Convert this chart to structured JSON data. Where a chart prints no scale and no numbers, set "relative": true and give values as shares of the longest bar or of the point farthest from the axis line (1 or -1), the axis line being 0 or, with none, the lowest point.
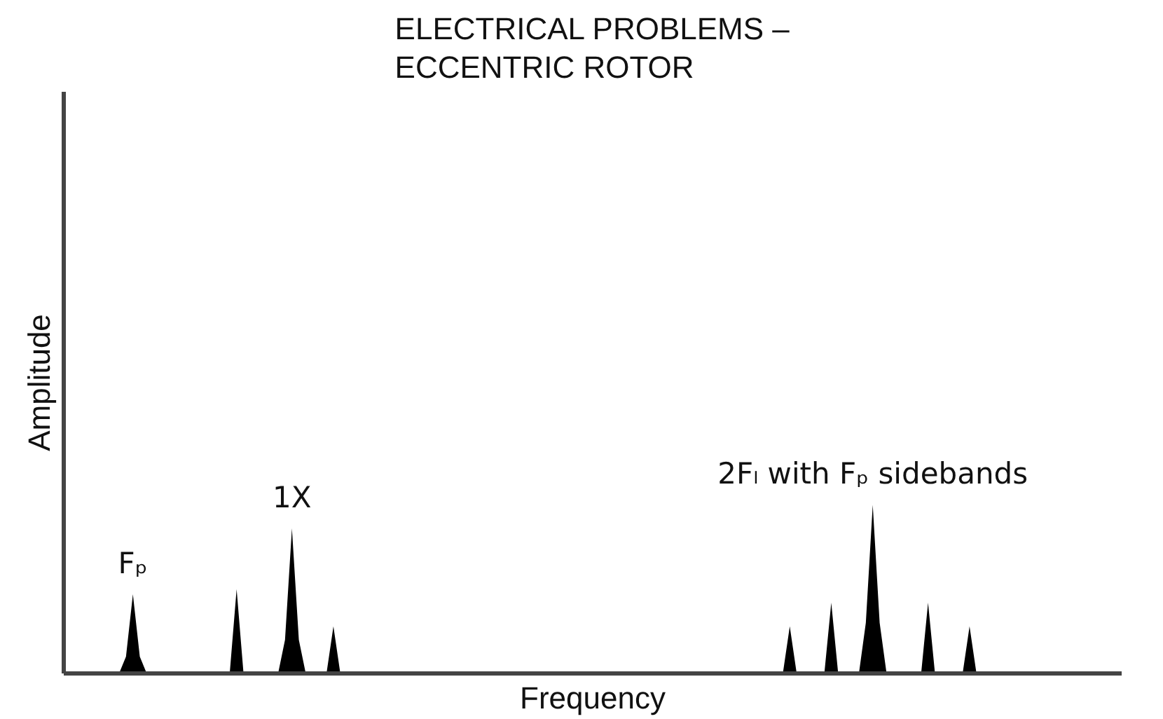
{
  "chart_data": {
    "type": "area",
    "title": "ELECTRICAL PROBLEMS –\nECCENTRIC ROTOR",
    "xlabel": "Frequency",
    "ylabel": "Amplitude",
    "relative": true,
    "color": "#000000",
    "categories": [
      null,
      null,
      null,
      null,
      null,
      null,
      null,
      null,
      null,
      null,
      null,
      null,
      null,
      null,
      null,
      null,
      null,
      null,
      null,
      null,
      null,
      null,
      null,
      null,
      null,
      null,
      null,
      null,
      null,
      null,
      null,
      null,
      null,
      null,
      null,
      null,
      null,
      null,
      null,
      null,
      null,
      null,
      null,
      null,
      null,
      null,
      null,
      null,
      null,
      null,
      null,
      null,
      null,
      null,
      null,
      null,
      null,
      null,
      null,
      null,
      null,
      null,
      null,
      null,
      null,
      null,
      null,
      null,
      null,
      null,
      null,
      null,
      null,
      null,
      null,
      null,
      null,
      null,
      null,
      null,
      null,
      null,
      null,
      null,
      null,
      null,
      null,
      null,
      null,
      null,
      null,
      null,
      null,
      null,
      null,
      null,
      null,
      null,
      null,
      null,
      null,
      null,
      null,
      null,
      null,
      null,
      null,
      null,
      null,
      null,
      null,
      null,
      null,
      null,
      null,
      null,
      null,
      null,
      null,
      null,
      null,
      null,
      null,
      null,
      null,
      null,
      null,
      null,
      null,
      null,
      null,
      null,
      null,
      null,
      null,
      null,
      null,
      null,
      null,
      null,
      null,
      null,
      null,
      null,
      null,
      null,
      null,
      null,
      null,
      null,
      null,
      null
    ],
    "values": [
      0,
      0,
      0,
      0,
      0,
      0,
      0,
      0,
      0.1,
      0.47,
      0.1,
      0,
      0,
      0,
      0,
      0,
      0,
      0,
      0,
      0,
      0,
      0,
      0,
      0,
      0.5,
      0,
      0,
      0,
      0,
      0,
      0,
      0.2,
      0.86,
      0.2,
      0,
      0,
      0,
      0,
      0.28,
      0,
      0,
      0,
      0,
      0,
      0,
      0,
      0,
      0,
      0,
      0,
      0,
      0,
      0,
      0,
      0,
      0,
      0,
      0,
      0,
      0,
      0,
      0,
      0,
      0,
      0,
      0,
      0,
      0,
      0,
      0,
      0,
      0,
      0,
      0,
      0,
      0,
      0,
      0,
      0,
      0,
      0,
      0,
      0,
      0,
      0,
      0,
      0,
      0,
      0,
      0,
      0,
      0,
      0,
      0,
      0,
      0,
      0,
      0,
      0,
      0,
      0,
      0,
      0,
      0,
      0.28,
      0,
      0,
      0,
      0,
      0,
      0.42,
      0,
      0,
      0,
      0,
      0.3,
      1,
      0.3,
      0,
      0,
      0,
      0,
      0,
      0,
      0.42,
      0,
      0,
      0,
      0,
      0,
      0.28,
      0,
      0,
      0,
      0,
      0,
      0,
      0,
      0,
      0,
      0,
      0,
      0,
      0,
      0,
      0,
      0,
      0,
      0,
      0,
      0,
      0
    ],
    "annotations": [
      {
        "text": "Fₚ",
        "y": 0.47
      },
      {
        "text": "1X",
        "y": 0.86
      },
      {
        "text": "2Fₗ with Fₚ sidebands",
        "y": 1
      }
    ]
  }
}
